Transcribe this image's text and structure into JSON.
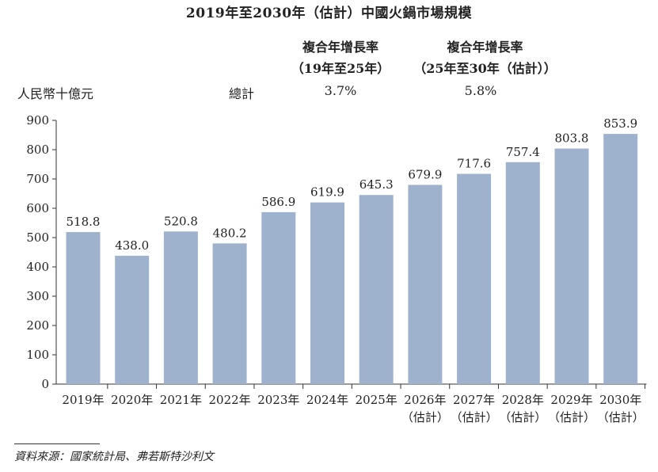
{
  "chart_data": {
    "type": "bar",
    "title": "2019年至2030年（估計）中國火鍋市場規模",
    "ylabel": "人民幣十億元",
    "categories": [
      "2019年",
      "2020年",
      "2021年",
      "2022年",
      "2023年",
      "2024年",
      "2025年",
      "2026年\n（估計）",
      "2027年\n（估計）",
      "2028年\n（估計）",
      "2029年\n（估計）",
      "2030年\n（估計）"
    ],
    "values": [
      518.8,
      438.0,
      520.8,
      480.2,
      586.9,
      619.9,
      645.3,
      679.9,
      717.6,
      757.4,
      803.8,
      853.9
    ],
    "value_labels": [
      "518.8",
      "438.0",
      "520.8",
      "480.2",
      "586.9",
      "619.9",
      "645.3",
      "679.9",
      "717.6",
      "757.4",
      "803.8",
      "853.9"
    ],
    "ylim": [
      0,
      900
    ],
    "yticks": [
      0,
      100,
      200,
      300,
      400,
      500,
      600,
      700,
      800,
      900
    ],
    "grid": false,
    "bar_color": "#9fb2cd"
  },
  "cagr": {
    "header_1_line1": "複合年增長率",
    "header_1_line2": "（19年至25年）",
    "header_2_line1": "複合年增長率",
    "header_2_line2": "（25年至30年（估計））",
    "row_label": "總計",
    "value_1": "3.7%",
    "value_2": "5.8%"
  },
  "source": "資料來源：國家統計局、弗若斯特沙利文"
}
